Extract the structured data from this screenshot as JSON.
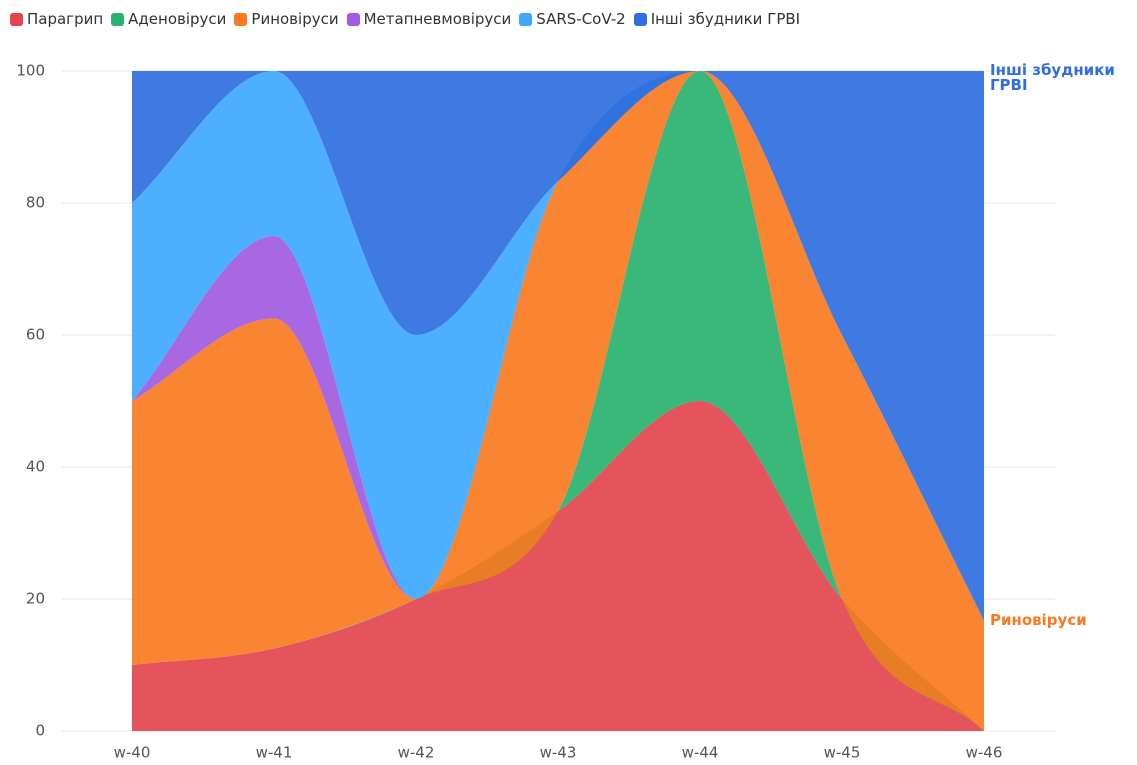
{
  "chart_data": {
    "type": "stacked-area",
    "categories": [
      "w-40",
      "w-41",
      "w-42",
      "w-43",
      "w-44",
      "w-45",
      "w-46"
    ],
    "series": [
      {
        "name": "Парагрип",
        "color": "#e3444f",
        "values": [
          10,
          12.5,
          20,
          33.3,
          50,
          20,
          0
        ]
      },
      {
        "name": "Аденовіруси",
        "color": "#28b26f",
        "values": [
          0,
          0,
          0,
          0,
          50,
          0,
          0
        ]
      },
      {
        "name": "Риновіруси",
        "color": "#f97a1f",
        "values": [
          40,
          50,
          0,
          50,
          0,
          40,
          16.7
        ]
      },
      {
        "name": "Метапневмовіруси",
        "color": "#a05be0",
        "values": [
          0,
          12.5,
          0,
          0,
          0,
          0,
          0
        ]
      },
      {
        "name": "SARS-CoV-2",
        "color": "#3ea8ff",
        "values": [
          30,
          25,
          40,
          0,
          0,
          0,
          0
        ]
      },
      {
        "name": "Інші збудники ГРВІ",
        "color": "#2f6ee0",
        "values": [
          20,
          0,
          40,
          16.7,
          0,
          40,
          83.3
        ]
      }
    ],
    "ylim": [
      0,
      100
    ],
    "yticks": [
      0,
      20,
      40,
      60,
      80,
      100
    ],
    "grid": true
  }
}
